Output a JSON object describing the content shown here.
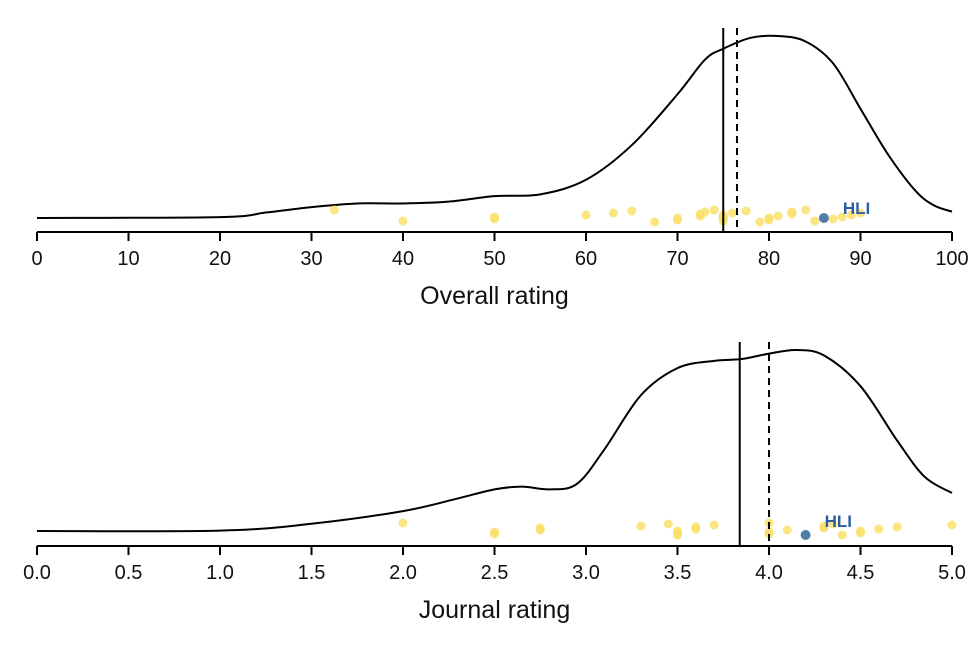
{
  "chart_data": [
    {
      "type": "density+strip",
      "xlabel": "Overall rating",
      "xlim": [
        0,
        100
      ],
      "ticks": [
        0,
        10,
        20,
        30,
        40,
        50,
        60,
        70,
        80,
        90,
        100
      ],
      "tick_labels": [
        "0",
        "10",
        "20",
        "30",
        "40",
        "50",
        "60",
        "70",
        "80",
        "90",
        "100"
      ],
      "density": [
        [
          0,
          0
        ],
        [
          20,
          0.005
        ],
        [
          25,
          0.03
        ],
        [
          30,
          0.06
        ],
        [
          35,
          0.08
        ],
        [
          40,
          0.08
        ],
        [
          45,
          0.09
        ],
        [
          50,
          0.12
        ],
        [
          55,
          0.13
        ],
        [
          60,
          0.21
        ],
        [
          65,
          0.4
        ],
        [
          70,
          0.68
        ],
        [
          73,
          0.87
        ],
        [
          75,
          0.93
        ],
        [
          78,
          0.99
        ],
        [
          81,
          1.0
        ],
        [
          84,
          0.97
        ],
        [
          87,
          0.85
        ],
        [
          90,
          0.6
        ],
        [
          93,
          0.35
        ],
        [
          96,
          0.15
        ],
        [
          98,
          0.07
        ],
        [
          100,
          0.035
        ]
      ],
      "mean_line": 75,
      "median_line": 76.5,
      "points": [
        32.5,
        40,
        50,
        50,
        60,
        63,
        65,
        67.5,
        70,
        70,
        72.5,
        72.5,
        73,
        74,
        75,
        75,
        75,
        75,
        76,
        77.5,
        79,
        80,
        80,
        81,
        82.5,
        82.5,
        84,
        85,
        87,
        88,
        89,
        90
      ],
      "highlight": {
        "label": "HLI",
        "value": 86
      }
    },
    {
      "type": "density+strip",
      "xlabel": "Journal rating",
      "xlim": [
        0,
        5
      ],
      "ticks": [
        0,
        0.5,
        1,
        1.5,
        2,
        2.5,
        3,
        3.5,
        4,
        4.5,
        5
      ],
      "tick_labels": [
        "0.0",
        "0.5",
        "1.0",
        "1.5",
        "2.0",
        "2.5",
        "3.0",
        "3.5",
        "4.0",
        "4.5",
        "5.0"
      ],
      "density": [
        [
          0,
          0
        ],
        [
          1.0,
          0.002
        ],
        [
          1.5,
          0.04
        ],
        [
          2.0,
          0.11
        ],
        [
          2.3,
          0.18
        ],
        [
          2.5,
          0.23
        ],
        [
          2.65,
          0.245
        ],
        [
          2.8,
          0.23
        ],
        [
          2.95,
          0.26
        ],
        [
          3.1,
          0.45
        ],
        [
          3.3,
          0.75
        ],
        [
          3.5,
          0.9
        ],
        [
          3.7,
          0.94
        ],
        [
          3.85,
          0.95
        ],
        [
          4.0,
          0.98
        ],
        [
          4.15,
          1.0
        ],
        [
          4.3,
          0.97
        ],
        [
          4.5,
          0.8
        ],
        [
          4.7,
          0.5
        ],
        [
          4.85,
          0.3
        ],
        [
          5.0,
          0.21
        ]
      ],
      "mean_line": 3.84,
      "median_line": 4.0,
      "points": [
        2.0,
        2.5,
        2.5,
        2.75,
        2.75,
        3.3,
        3.45,
        3.5,
        3.5,
        3.5,
        3.6,
        3.6,
        3.7,
        4.0,
        4.0,
        4.0,
        4.1,
        4.3,
        4.3,
        4.35,
        4.4,
        4.5,
        4.5,
        4.6,
        4.7,
        5.0
      ],
      "highlight": {
        "label": "HLI",
        "value": 4.2
      }
    }
  ],
  "colors": {
    "points": "#f9e06a",
    "highlight": "#4f7fa8",
    "highlight_label": "#2b5ea7",
    "line": "#000000"
  }
}
